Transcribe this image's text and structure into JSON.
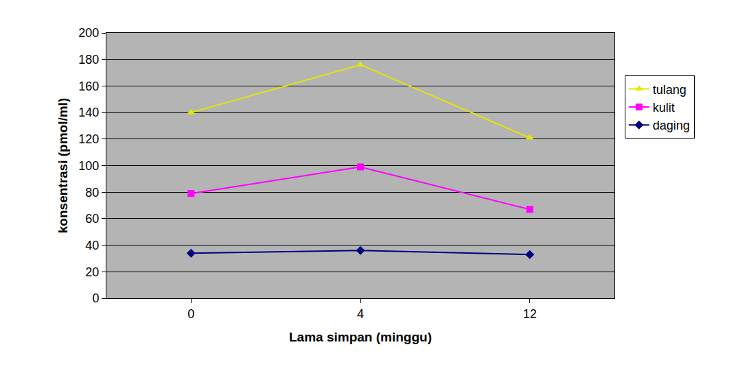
{
  "chart_data": {
    "type": "line",
    "x_label": "Lama simpan (minggu)",
    "y_label": "konsentrasi (pmol/ml)",
    "categories": [
      "0",
      "4",
      "12"
    ],
    "series": [
      {
        "name": "tulang",
        "color": "#e6e600",
        "marker": "triangle-up",
        "values": [
          140,
          176,
          121
        ]
      },
      {
        "name": "kulit",
        "color": "#ff00ff",
        "marker": "square",
        "values": [
          79,
          99,
          67
        ]
      },
      {
        "name": "daging",
        "color": "#000080",
        "marker": "diamond",
        "values": [
          34,
          36,
          33
        ]
      }
    ],
    "ylim": [
      0,
      200
    ],
    "yticks": [
      0,
      20,
      40,
      60,
      80,
      100,
      120,
      140,
      160,
      180,
      200
    ],
    "grid": true,
    "legend": "right"
  }
}
